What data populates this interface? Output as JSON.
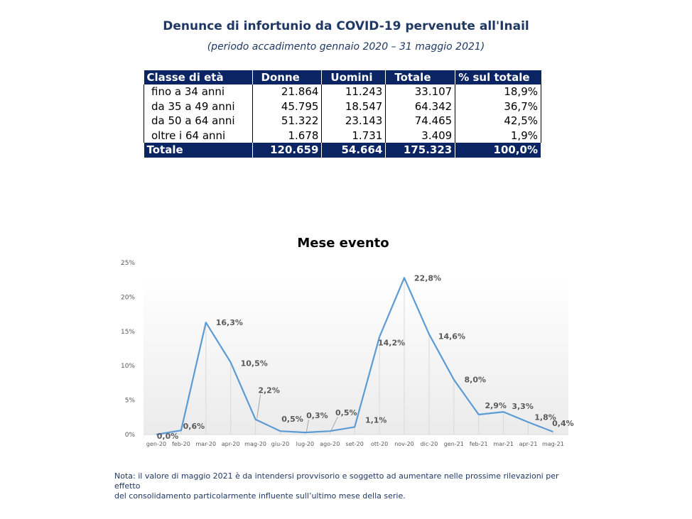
{
  "header": {
    "title": "Denunce di infortunio da COVID-19 pervenute all'Inail",
    "subtitle": "(periodo accadimento gennaio 2020 – 31 maggio 2021)"
  },
  "table": {
    "columns": [
      "Classe di età",
      "Donne",
      "Uomini",
      "Totale",
      "% sul totale"
    ],
    "rows": [
      [
        "fino a 34 anni",
        "21.864",
        "11.243",
        "33.107",
        "18,9%"
      ],
      [
        "da 35 a 49 anni",
        "45.795",
        "18.547",
        "64.342",
        "36,7%"
      ],
      [
        "da 50 a 64 anni",
        "51.322",
        "23.143",
        "74.465",
        "42,5%"
      ],
      [
        "oltre i 64 anni",
        "1.678",
        "1.731",
        "3.409",
        "1,9%"
      ]
    ],
    "total": [
      "Totale",
      "120.659",
      "54.664",
      "175.323",
      "100,0%"
    ]
  },
  "chart_data": {
    "type": "line",
    "title": "Mese evento",
    "xlabel": "",
    "ylabel": "",
    "categories": [
      "gen-20",
      "feb-20",
      "mar-20",
      "apr-20",
      "mag-20",
      "giu-20",
      "lug-20",
      "ago-20",
      "set-20",
      "ott-20",
      "nov-20",
      "dic-20",
      "gen-21",
      "feb-21",
      "mar-21",
      "apr-21",
      "mag-21"
    ],
    "values": [
      0.0,
      0.6,
      16.3,
      10.5,
      2.2,
      0.5,
      0.3,
      0.5,
      1.1,
      14.2,
      22.8,
      14.6,
      8.0,
      2.9,
      3.3,
      1.8,
      0.4
    ],
    "labels": [
      "0,0%",
      "0,6%",
      "16,3%",
      "10,5%",
      "2,2%",
      "0,5%",
      "0,3%",
      "0,5%",
      "1,1%",
      "14,2%",
      "22,8%",
      "14,6%",
      "8,0%",
      "2,9%",
      "3,3%",
      "1,8%",
      "0,4%"
    ],
    "yticks": [
      "0%",
      "5%",
      "10%",
      "15%",
      "20%",
      "25%"
    ],
    "ylim": [
      0,
      25
    ],
    "grid": "vertical drop lines",
    "legend": "none",
    "colors": {
      "line": "#5b9bd5",
      "label": "#595959",
      "axis": "#d9d9d9"
    }
  },
  "note": {
    "line1": "Nota: il valore di maggio 2021 è da intendersi provvisorio e soggetto ad aumentare nelle prossime rilevazioni per effetto",
    "line2": "del consolidamento particolarmente influente sull’ultimo mese della serie."
  }
}
